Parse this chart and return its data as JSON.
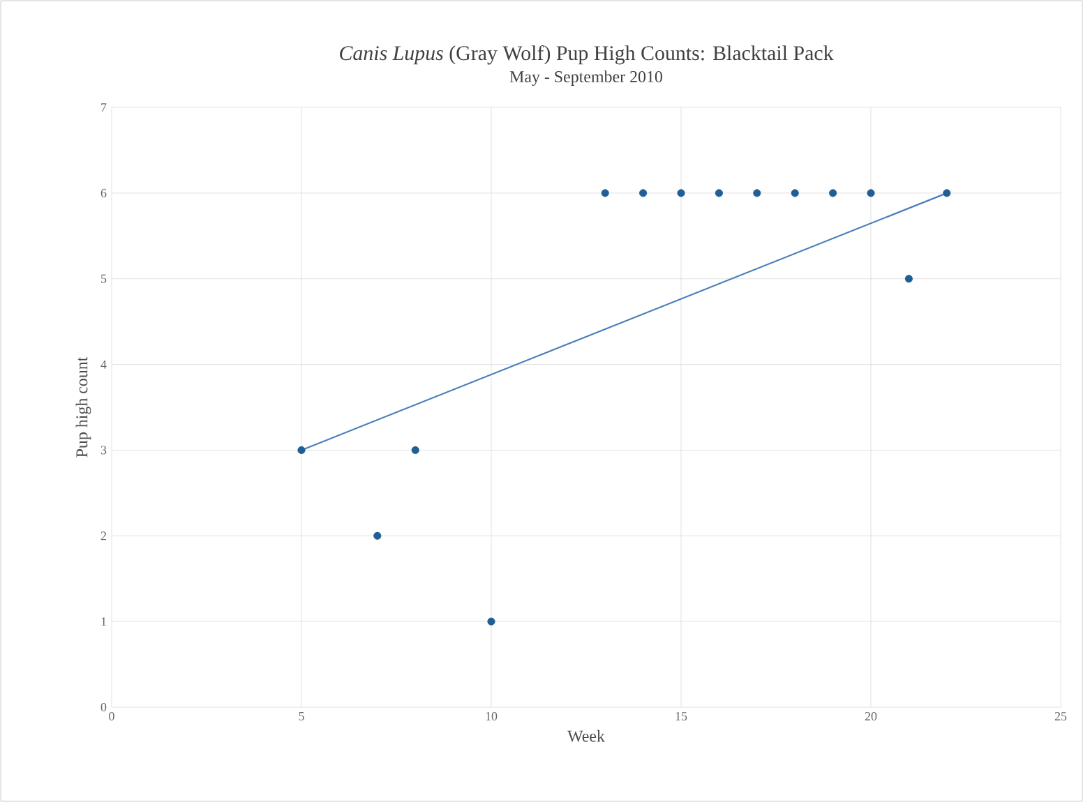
{
  "chart_data": {
    "type": "scatter",
    "title": "*Canis Lupus* (Gray Wolf) Pup High Counts: Blacktail Pack",
    "subtitle": "May - September 2010",
    "xlabel": "Week",
    "ylabel": "Pup high count",
    "xlim": [
      0,
      25
    ],
    "xticks": [
      0,
      5,
      10,
      15,
      20,
      25
    ],
    "ylim": [
      0,
      7
    ],
    "yticks": [
      0,
      1,
      2,
      3,
      4,
      5,
      6,
      7
    ],
    "grid": true,
    "series": [
      {
        "marker": "circle",
        "color": "#1f5f95",
        "x": [
          5,
          7,
          8,
          10,
          13,
          14,
          15,
          16,
          17,
          18,
          19,
          20,
          21,
          22
        ],
        "values": [
          3,
          2,
          3,
          1,
          6,
          6,
          6,
          6,
          6,
          6,
          6,
          6,
          5,
          6
        ]
      },
      {
        "type": "line",
        "marker": "none",
        "color": "#4a7ebb",
        "x": [
          5,
          22
        ],
        "values": [
          3,
          6
        ]
      }
    ]
  }
}
